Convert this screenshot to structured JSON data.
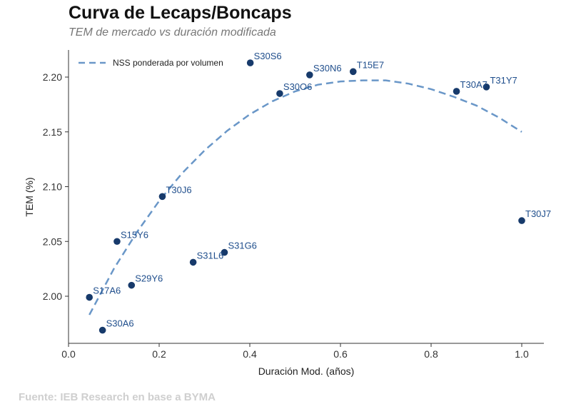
{
  "title": "Curva de Lecaps/Boncaps",
  "subtitle": "TEM de mercado vs duración modificada",
  "source": "Fuente: IEB Research en base a BYMA",
  "colors": {
    "points": "#173a6b",
    "curve": "#6a97c8",
    "labels": "#1f4e8c"
  },
  "chart_data": {
    "type": "scatter",
    "xlabel": "Duración Mod. (años)",
    "ylabel": "TEM (%)",
    "xlim": [
      0.0,
      1.05
    ],
    "ylim": [
      1.96,
      2.225
    ],
    "xticks": [
      0.0,
      0.2,
      0.4,
      0.6,
      0.8,
      1.0
    ],
    "xtick_labels": [
      "0.0",
      "0.2",
      "0.4",
      "0.6",
      "0.8",
      "1.0"
    ],
    "yticks": [
      2.0,
      2.05,
      2.1,
      2.15,
      2.2
    ],
    "ytick_labels": [
      "2.00",
      "2.05",
      "2.10",
      "2.15",
      "2.20"
    ],
    "grid": false,
    "legend_position": "top-left",
    "points": [
      {
        "label": "S17A6",
        "x": 0.046,
        "y": 1.999
      },
      {
        "label": "S30A6",
        "x": 0.075,
        "y": 1.969
      },
      {
        "label": "S15Y6",
        "x": 0.107,
        "y": 2.05
      },
      {
        "label": "S29Y6",
        "x": 0.139,
        "y": 2.01
      },
      {
        "label": "T30J6",
        "x": 0.207,
        "y": 2.091
      },
      {
        "label": "S31L6",
        "x": 0.275,
        "y": 2.031
      },
      {
        "label": "S31G6",
        "x": 0.344,
        "y": 2.04
      },
      {
        "label": "S30S6",
        "x": 0.401,
        "y": 2.213
      },
      {
        "label": "S30O6",
        "x": 0.466,
        "y": 2.185
      },
      {
        "label": "S30N6",
        "x": 0.532,
        "y": 2.202
      },
      {
        "label": "T15E7",
        "x": 0.628,
        "y": 2.205
      },
      {
        "label": "T30A7",
        "x": 0.856,
        "y": 2.187
      },
      {
        "label": "T31Y7",
        "x": 0.922,
        "y": 2.191
      },
      {
        "label": "T30J7",
        "x": 1.0,
        "y": 2.069
      }
    ],
    "curve": {
      "name": "NSS ponderada por volumen",
      "style": "dashed",
      "x": [
        0.046,
        0.1,
        0.15,
        0.2,
        0.25,
        0.3,
        0.35,
        0.4,
        0.45,
        0.5,
        0.55,
        0.6,
        0.65,
        0.7,
        0.75,
        0.8,
        0.85,
        0.9,
        0.95,
        1.0
      ],
      "y": [
        1.983,
        2.025,
        2.058,
        2.087,
        2.112,
        2.133,
        2.151,
        2.166,
        2.178,
        2.187,
        2.193,
        2.196,
        2.197,
        2.197,
        2.194,
        2.189,
        2.182,
        2.174,
        2.163,
        2.15
      ]
    }
  }
}
